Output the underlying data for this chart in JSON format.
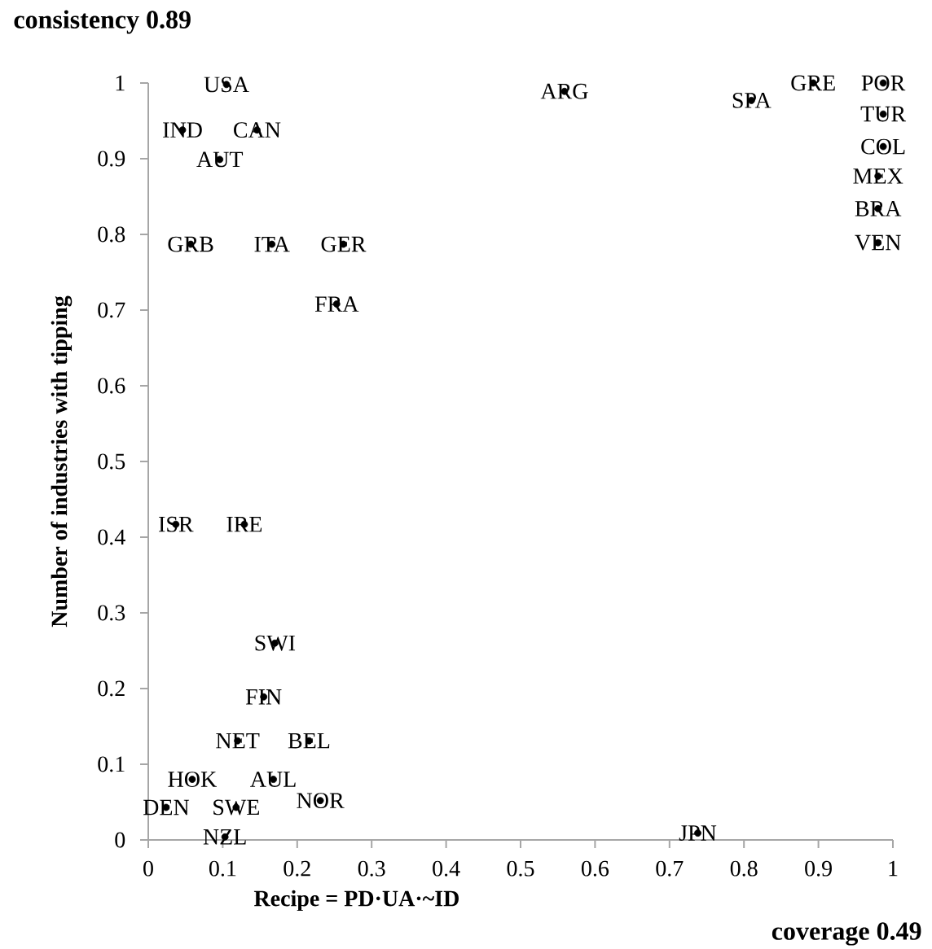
{
  "chart_data": {
    "type": "scatter",
    "title": "consistency 0.89",
    "xlabel": "Recipe = PD·UA·~ID",
    "ylabel": "Number of industries with tipping",
    "annotations": [
      "coverage 0.49"
    ],
    "xlim": [
      0,
      1
    ],
    "ylim": [
      0,
      1
    ],
    "xticks": [
      0,
      0.1,
      0.2,
      0.3,
      0.4,
      0.5,
      0.6,
      0.7,
      0.8,
      0.9,
      1
    ],
    "yticks": [
      0,
      0.1,
      0.2,
      0.3,
      0.4,
      0.5,
      0.6,
      0.7,
      0.8,
      0.9,
      1
    ],
    "grid": false,
    "series": [
      {
        "color": "#000000",
        "x": [
          0.105,
          0.046,
          0.146,
          0.096,
          0.057,
          0.166,
          0.262,
          0.253,
          0.559,
          0.81,
          0.893,
          0.987,
          0.987,
          0.987,
          0.98,
          0.98,
          0.98,
          0.037,
          0.129,
          0.17,
          0.155,
          0.12,
          0.216,
          0.059,
          0.168,
          0.024,
          0.118,
          0.231,
          0.103,
          0.738
        ],
        "values": [
          0.998,
          0.938,
          0.938,
          0.899,
          0.787,
          0.787,
          0.787,
          0.708,
          0.989,
          0.977,
          1.0,
          1.0,
          0.959,
          0.916,
          0.877,
          0.834,
          0.789,
          0.417,
          0.417,
          0.26,
          0.189,
          0.131,
          0.131,
          0.08,
          0.08,
          0.043,
          0.043,
          0.052,
          0.004,
          0.009
        ],
        "value_labels": [
          "USA",
          "IND",
          "CAN",
          "AUT",
          "GRB",
          "ITA",
          "GER",
          "FRA",
          "ARG",
          "SPA",
          "GRE",
          "POR",
          "TUR",
          "COL",
          "MEX",
          "BRA",
          "VEN",
          "ISR",
          "IRE",
          "SWI",
          "FIN",
          "NET",
          "BEL",
          "HOK",
          "AUL",
          "DEN",
          "SWE",
          "NOR",
          "NZL",
          "JPN"
        ]
      }
    ]
  }
}
